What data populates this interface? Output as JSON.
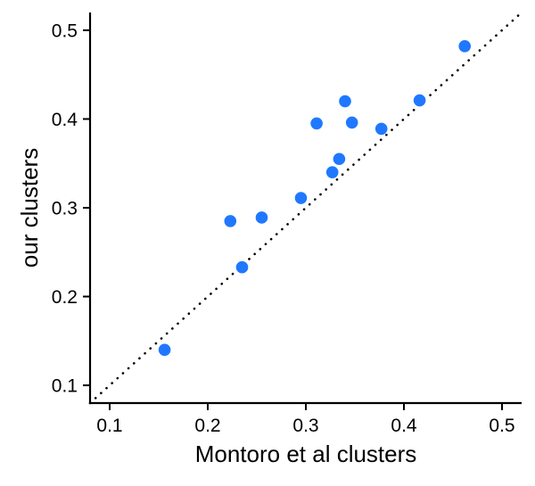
{
  "chart_data": {
    "type": "scatter",
    "xlabel": "Montoro et al clusters",
    "ylabel": "our clusters",
    "xlim": [
      0.08,
      0.52
    ],
    "ylim": [
      0.08,
      0.52
    ],
    "xticks": [
      0.1,
      0.2,
      0.3,
      0.4,
      0.5
    ],
    "yticks": [
      0.1,
      0.2,
      0.3,
      0.4,
      0.5
    ],
    "xtick_labels": [
      "0.1",
      "0.2",
      "0.3",
      "0.4",
      "0.5"
    ],
    "ytick_labels": [
      "0.1",
      "0.2",
      "0.3",
      "0.4",
      "0.5"
    ],
    "grid": false,
    "reference_line": {
      "style": "dotted",
      "x": [
        0.08,
        0.52
      ],
      "y": [
        0.08,
        0.52
      ]
    },
    "point_color": "#1F78FF",
    "points": [
      {
        "x": 0.156,
        "y": 0.14
      },
      {
        "x": 0.223,
        "y": 0.285
      },
      {
        "x": 0.235,
        "y": 0.233
      },
      {
        "x": 0.255,
        "y": 0.289
      },
      {
        "x": 0.295,
        "y": 0.311
      },
      {
        "x": 0.311,
        "y": 0.395
      },
      {
        "x": 0.327,
        "y": 0.34
      },
      {
        "x": 0.334,
        "y": 0.355
      },
      {
        "x": 0.34,
        "y": 0.42
      },
      {
        "x": 0.347,
        "y": 0.396
      },
      {
        "x": 0.377,
        "y": 0.389
      },
      {
        "x": 0.416,
        "y": 0.421
      },
      {
        "x": 0.462,
        "y": 0.482
      }
    ]
  }
}
